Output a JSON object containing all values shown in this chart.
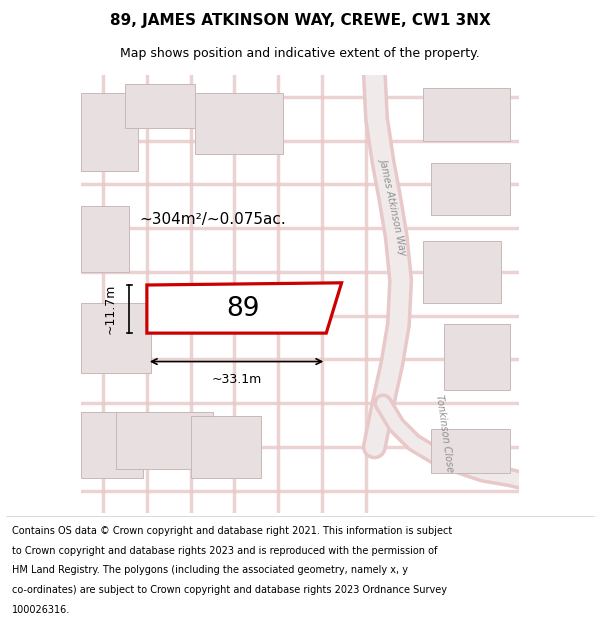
{
  "title": "89, JAMES ATKINSON WAY, CREWE, CW1 3NX",
  "subtitle": "Map shows position and indicative extent of the property.",
  "footer_lines": [
    "Contains OS data © Crown copyright and database right 2021. This information is subject",
    "to Crown copyright and database rights 2023 and is reproduced with the permission of",
    "HM Land Registry. The polygons (including the associated geometry, namely x, y",
    "co-ordinates) are subject to Crown copyright and database rights 2023 Ordnance Survey",
    "100026316."
  ],
  "plot_number": "89",
  "area_text": "~304m²/~0.075ac.",
  "width_text": "~33.1m",
  "height_text": "~11.7m",
  "map_bg": "#f5f0f0",
  "building_fill": "#e8e0e0",
  "road_color": "#e8c8c8",
  "highlight_color": "#cc0000",
  "street_label_1": "James Atkinson Way",
  "street_label_2": "Tonkinson Close",
  "title_fontsize": 11,
  "subtitle_fontsize": 9,
  "footer_fontsize": 7
}
